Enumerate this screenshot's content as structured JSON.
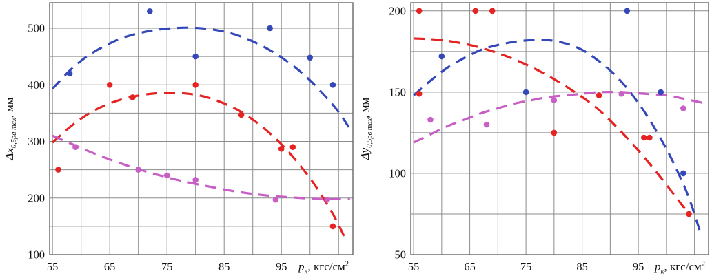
{
  "page": {
    "background": "#ffffff"
  },
  "colors": {
    "blue": "#3448b8",
    "red": "#e52322",
    "magenta": "#c75fc4",
    "grid": "#8c8c8c",
    "axis_border": "#666666",
    "tick_text": "#121212"
  },
  "charts": [
    {
      "id": "delta-x",
      "ylabel": {
        "sym": "Δx",
        "sub": "0,5ра max",
        "unit": ", мм"
      },
      "xlabel": {
        "sym": "p",
        "sub": "к",
        "unit": ", кгс/см",
        "sup": "2"
      },
      "axes": {
        "x_min": 54.5,
        "x_max": 107.5,
        "x_grid_step": 5,
        "x_tick_labels": [
          55,
          65,
          75,
          85,
          95
        ],
        "y_min": 100,
        "y_max": 545,
        "y_grid_step": 50,
        "y_tick_labels": [
          100,
          200,
          300,
          400,
          500
        ],
        "grid": true
      },
      "chart_data": {
        "type": "scatter",
        "note": "dashed fitted trend curves over measured points"
      },
      "series": [
        {
          "name": "blue-series",
          "color": "blue",
          "points": [
            [
              58,
              420
            ],
            [
              72,
              530
            ],
            [
              80,
              450
            ],
            [
              93,
              500
            ],
            [
              100,
              448
            ],
            [
              104,
              400
            ]
          ],
          "curve": [
            [
              55,
              393
            ],
            [
              58,
              425
            ],
            [
              61,
              450
            ],
            [
              64,
              468
            ],
            [
              67,
              482
            ],
            [
              70,
              491
            ],
            [
              73,
              497
            ],
            [
              76,
              500
            ],
            [
              79,
              501
            ],
            [
              82,
              499
            ],
            [
              85,
              494
            ],
            [
              88,
              485
            ],
            [
              91,
              472
            ],
            [
              94,
              455
            ],
            [
              97,
              434
            ],
            [
              100,
              408
            ],
            [
              103,
              376
            ],
            [
              105,
              352
            ],
            [
              107,
              322
            ]
          ]
        },
        {
          "name": "red-series",
          "color": "red",
          "points": [
            [
              56,
              250
            ],
            [
              65,
              400
            ],
            [
              69,
              378
            ],
            [
              80,
              400
            ],
            [
              88,
              347
            ],
            [
              95,
              287
            ],
            [
              97,
              290
            ],
            [
              104,
              150
            ]
          ],
          "curve": [
            [
              55,
              298
            ],
            [
              58,
              325
            ],
            [
              61,
              347
            ],
            [
              64,
              363
            ],
            [
              67,
              374
            ],
            [
              70,
              381
            ],
            [
              73,
              385
            ],
            [
              76,
              386
            ],
            [
              79,
              384
            ],
            [
              82,
              378
            ],
            [
              85,
              367
            ],
            [
              88,
              352
            ],
            [
              91,
              331
            ],
            [
              94,
              305
            ],
            [
              97,
              273
            ],
            [
              100,
              235
            ],
            [
              102,
              205
            ],
            [
              104,
              172
            ],
            [
              106,
              132
            ]
          ]
        },
        {
          "name": "magenta-series",
          "color": "magenta",
          "points": [
            [
              59,
              290
            ],
            [
              70,
              250
            ],
            [
              75,
              240
            ],
            [
              80,
              232
            ],
            [
              94,
              197
            ],
            [
              103,
              197
            ]
          ],
          "curve": [
            [
              55,
              310
            ],
            [
              58,
              297
            ],
            [
              61,
              284
            ],
            [
              64,
              272
            ],
            [
              67,
              261
            ],
            [
              70,
              251
            ],
            [
              73,
              242
            ],
            [
              76,
              234
            ],
            [
              79,
              227
            ],
            [
              82,
              221
            ],
            [
              85,
              215
            ],
            [
              88,
              210
            ],
            [
              91,
              206
            ],
            [
              94,
              203
            ],
            [
              97,
              201
            ],
            [
              100,
              199
            ],
            [
              103,
              198
            ],
            [
              107,
              198
            ]
          ]
        }
      ]
    },
    {
      "id": "delta-y",
      "ylabel": {
        "sym": "Δy",
        "sub": "0,5рв max",
        "unit": ", мм"
      },
      "xlabel": {
        "sym": "p",
        "sub": "к",
        "unit": ", кгс/см",
        "sup": "2"
      },
      "axes": {
        "x_min": 54.5,
        "x_max": 107.5,
        "x_grid_step": 5,
        "x_tick_labels": [
          55,
          65,
          75,
          85,
          95
        ],
        "y_min": 50,
        "y_max": 205,
        "y_grid_step": 25,
        "y_tick_labels": [
          50,
          100,
          150,
          200
        ],
        "grid": true
      },
      "chart_data": {
        "type": "scatter",
        "note": "dashed fitted trend curves over measured points"
      },
      "series": [
        {
          "name": "blue-series",
          "color": "blue",
          "points": [
            [
              60,
              172
            ],
            [
              75,
              150
            ],
            [
              93,
              200
            ],
            [
              99,
              150
            ],
            [
              103,
              100
            ]
          ],
          "curve": [
            [
              55,
              148
            ],
            [
              58,
              157
            ],
            [
              61,
              165
            ],
            [
              64,
              171
            ],
            [
              67,
              176
            ],
            [
              70,
              179
            ],
            [
              73,
              181
            ],
            [
              76,
              182
            ],
            [
              79,
              182
            ],
            [
              82,
              180
            ],
            [
              85,
              176
            ],
            [
              88,
              169
            ],
            [
              91,
              160
            ],
            [
              94,
              148
            ],
            [
              97,
              133
            ],
            [
              100,
              115
            ],
            [
              102,
              101
            ],
            [
              104,
              85
            ],
            [
              106,
              64
            ]
          ]
        },
        {
          "name": "red-series",
          "color": "red",
          "points": [
            [
              56,
              200
            ],
            [
              66,
              200
            ],
            [
              69,
              200
            ],
            [
              56,
              149
            ],
            [
              80,
              125
            ],
            [
              88,
              148
            ],
            [
              96,
              122
            ],
            [
              97,
              122
            ],
            [
              104,
              75
            ]
          ],
          "curve": [
            [
              55,
              183
            ],
            [
              60,
              182
            ],
            [
              65,
              179
            ],
            [
              70,
              174
            ],
            [
              75,
              167
            ],
            [
              80,
              158
            ],
            [
              85,
              147
            ],
            [
              88,
              139
            ],
            [
              91,
              129
            ],
            [
              94,
              118
            ],
            [
              97,
              106
            ],
            [
              100,
              93
            ],
            [
              102,
              84
            ],
            [
              104,
              75
            ]
          ]
        },
        {
          "name": "magenta-series",
          "color": "magenta",
          "points": [
            [
              58,
              133
            ],
            [
              68,
              130
            ],
            [
              80,
              145
            ],
            [
              92,
              149
            ],
            [
              103,
              140
            ]
          ],
          "curve": [
            [
              55,
              119
            ],
            [
              58,
              124
            ],
            [
              61,
              129
            ],
            [
              64,
              133
            ],
            [
              67,
              137
            ],
            [
              70,
              140
            ],
            [
              73,
              143
            ],
            [
              76,
              145
            ],
            [
              79,
              147
            ],
            [
              82,
              148
            ],
            [
              85,
              149
            ],
            [
              88,
              150
            ],
            [
              92,
              150
            ],
            [
              96,
              149
            ],
            [
              100,
              148
            ],
            [
              103,
              146
            ],
            [
              107,
              143
            ]
          ]
        }
      ]
    }
  ]
}
